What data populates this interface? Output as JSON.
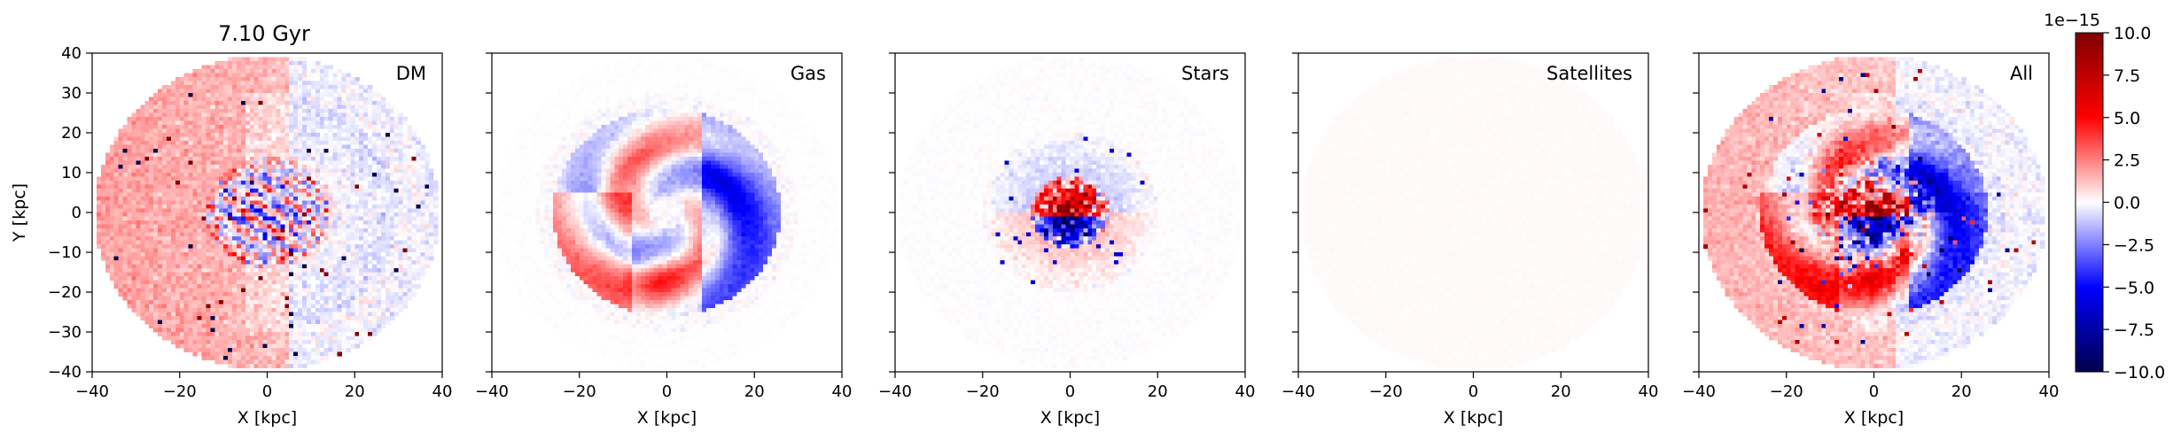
{
  "figure": {
    "title": "7.10 Gyr"
  },
  "chart_data": [
    {
      "type": "heatmap",
      "label": "DM",
      "xlabel": "X [kpc]",
      "ylabel": "Y [kpc]",
      "xlim": [
        -40,
        40
      ],
      "ylim": [
        -40,
        40
      ],
      "xticks": [
        "−40",
        "−20",
        "0",
        "20",
        "40"
      ],
      "yticks": [
        "40",
        "30",
        "20",
        "10",
        "0",
        "−10",
        "−20",
        "−30",
        "−40"
      ]
    },
    {
      "type": "heatmap",
      "label": "Gas",
      "xlabel": "X [kpc]",
      "ylabel": "",
      "xlim": [
        -40,
        40
      ],
      "ylim": [
        -40,
        40
      ],
      "xticks": [
        "−40",
        "−20",
        "0",
        "20",
        "40"
      ],
      "yticks": []
    },
    {
      "type": "heatmap",
      "label": "Stars",
      "xlabel": "X [kpc]",
      "ylabel": "",
      "xlim": [
        -40,
        40
      ],
      "ylim": [
        -40,
        40
      ],
      "xticks": [
        "−40",
        "−20",
        "0",
        "20",
        "40"
      ],
      "yticks": []
    },
    {
      "type": "heatmap",
      "label": "Satellites",
      "xlabel": "X [kpc]",
      "ylabel": "",
      "xlim": [
        -40,
        40
      ],
      "ylim": [
        -40,
        40
      ],
      "xticks": [
        "−40",
        "−20",
        "0",
        "20",
        "40"
      ],
      "yticks": []
    },
    {
      "type": "heatmap",
      "label": "All",
      "xlabel": "X [kpc]",
      "ylabel": "",
      "xlim": [
        -40,
        40
      ],
      "ylim": [
        -40,
        40
      ],
      "xticks": [
        "−40",
        "−20",
        "0",
        "20",
        "40"
      ],
      "yticks": []
    }
  ],
  "colorbar": {
    "colormap": "seismic",
    "exponent": "1e−15",
    "range": [
      -10,
      10
    ],
    "ticks": [
      "10.0",
      "7.5",
      "5.0",
      "2.5",
      "0.0",
      "−2.5",
      "−5.0",
      "−7.5",
      "−10.0"
    ],
    "colors": {
      "low": "#00004c",
      "mid": "#ffffff",
      "high": "#800000"
    }
  }
}
